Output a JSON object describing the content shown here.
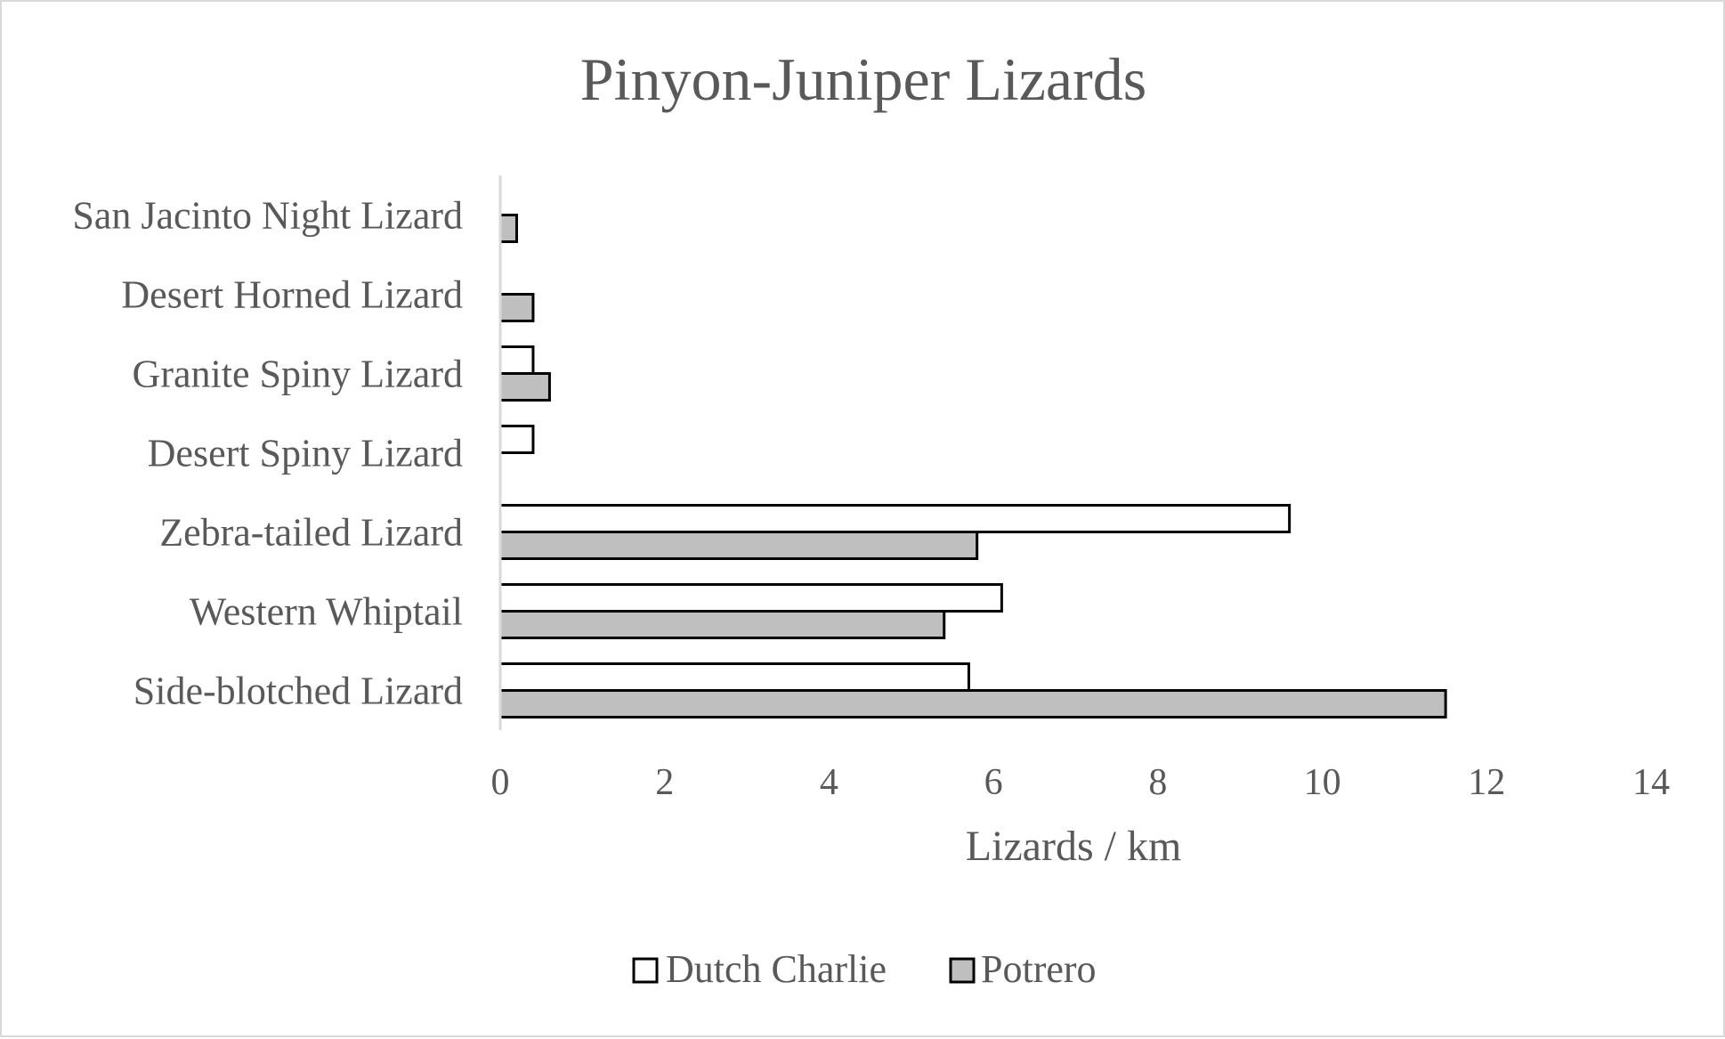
{
  "chart_data": {
    "type": "bar",
    "orientation": "horizontal",
    "title": "Pinyon-Juniper Lizards",
    "xlabel": "Lizards / km",
    "ylabel": "",
    "categories": [
      "San Jacinto Night Lizard",
      "Desert Horned Lizard",
      "Granite Spiny Lizard",
      "Desert Spiny Lizard",
      "Zebra-tailed Lizard",
      "Western Whiptail ",
      "Side-blotched Lizard"
    ],
    "series": [
      {
        "name": "Dutch Charlie",
        "color": "#ffffff",
        "values": [
          0,
          0,
          0.4,
          0.4,
          9.6,
          6.1,
          5.7
        ]
      },
      {
        "name": "Potrero",
        "color": "#bfbfbf",
        "values": [
          0.2,
          0.4,
          0.6,
          0,
          5.8,
          5.4,
          11.5
        ]
      }
    ],
    "xlim": [
      0,
      14
    ],
    "xticks": [
      "0",
      "2",
      "4",
      "6",
      "8",
      "10",
      "12",
      "14"
    ],
    "grid": false,
    "legend_position": "bottom",
    "bar_outline_color": "#000000"
  }
}
